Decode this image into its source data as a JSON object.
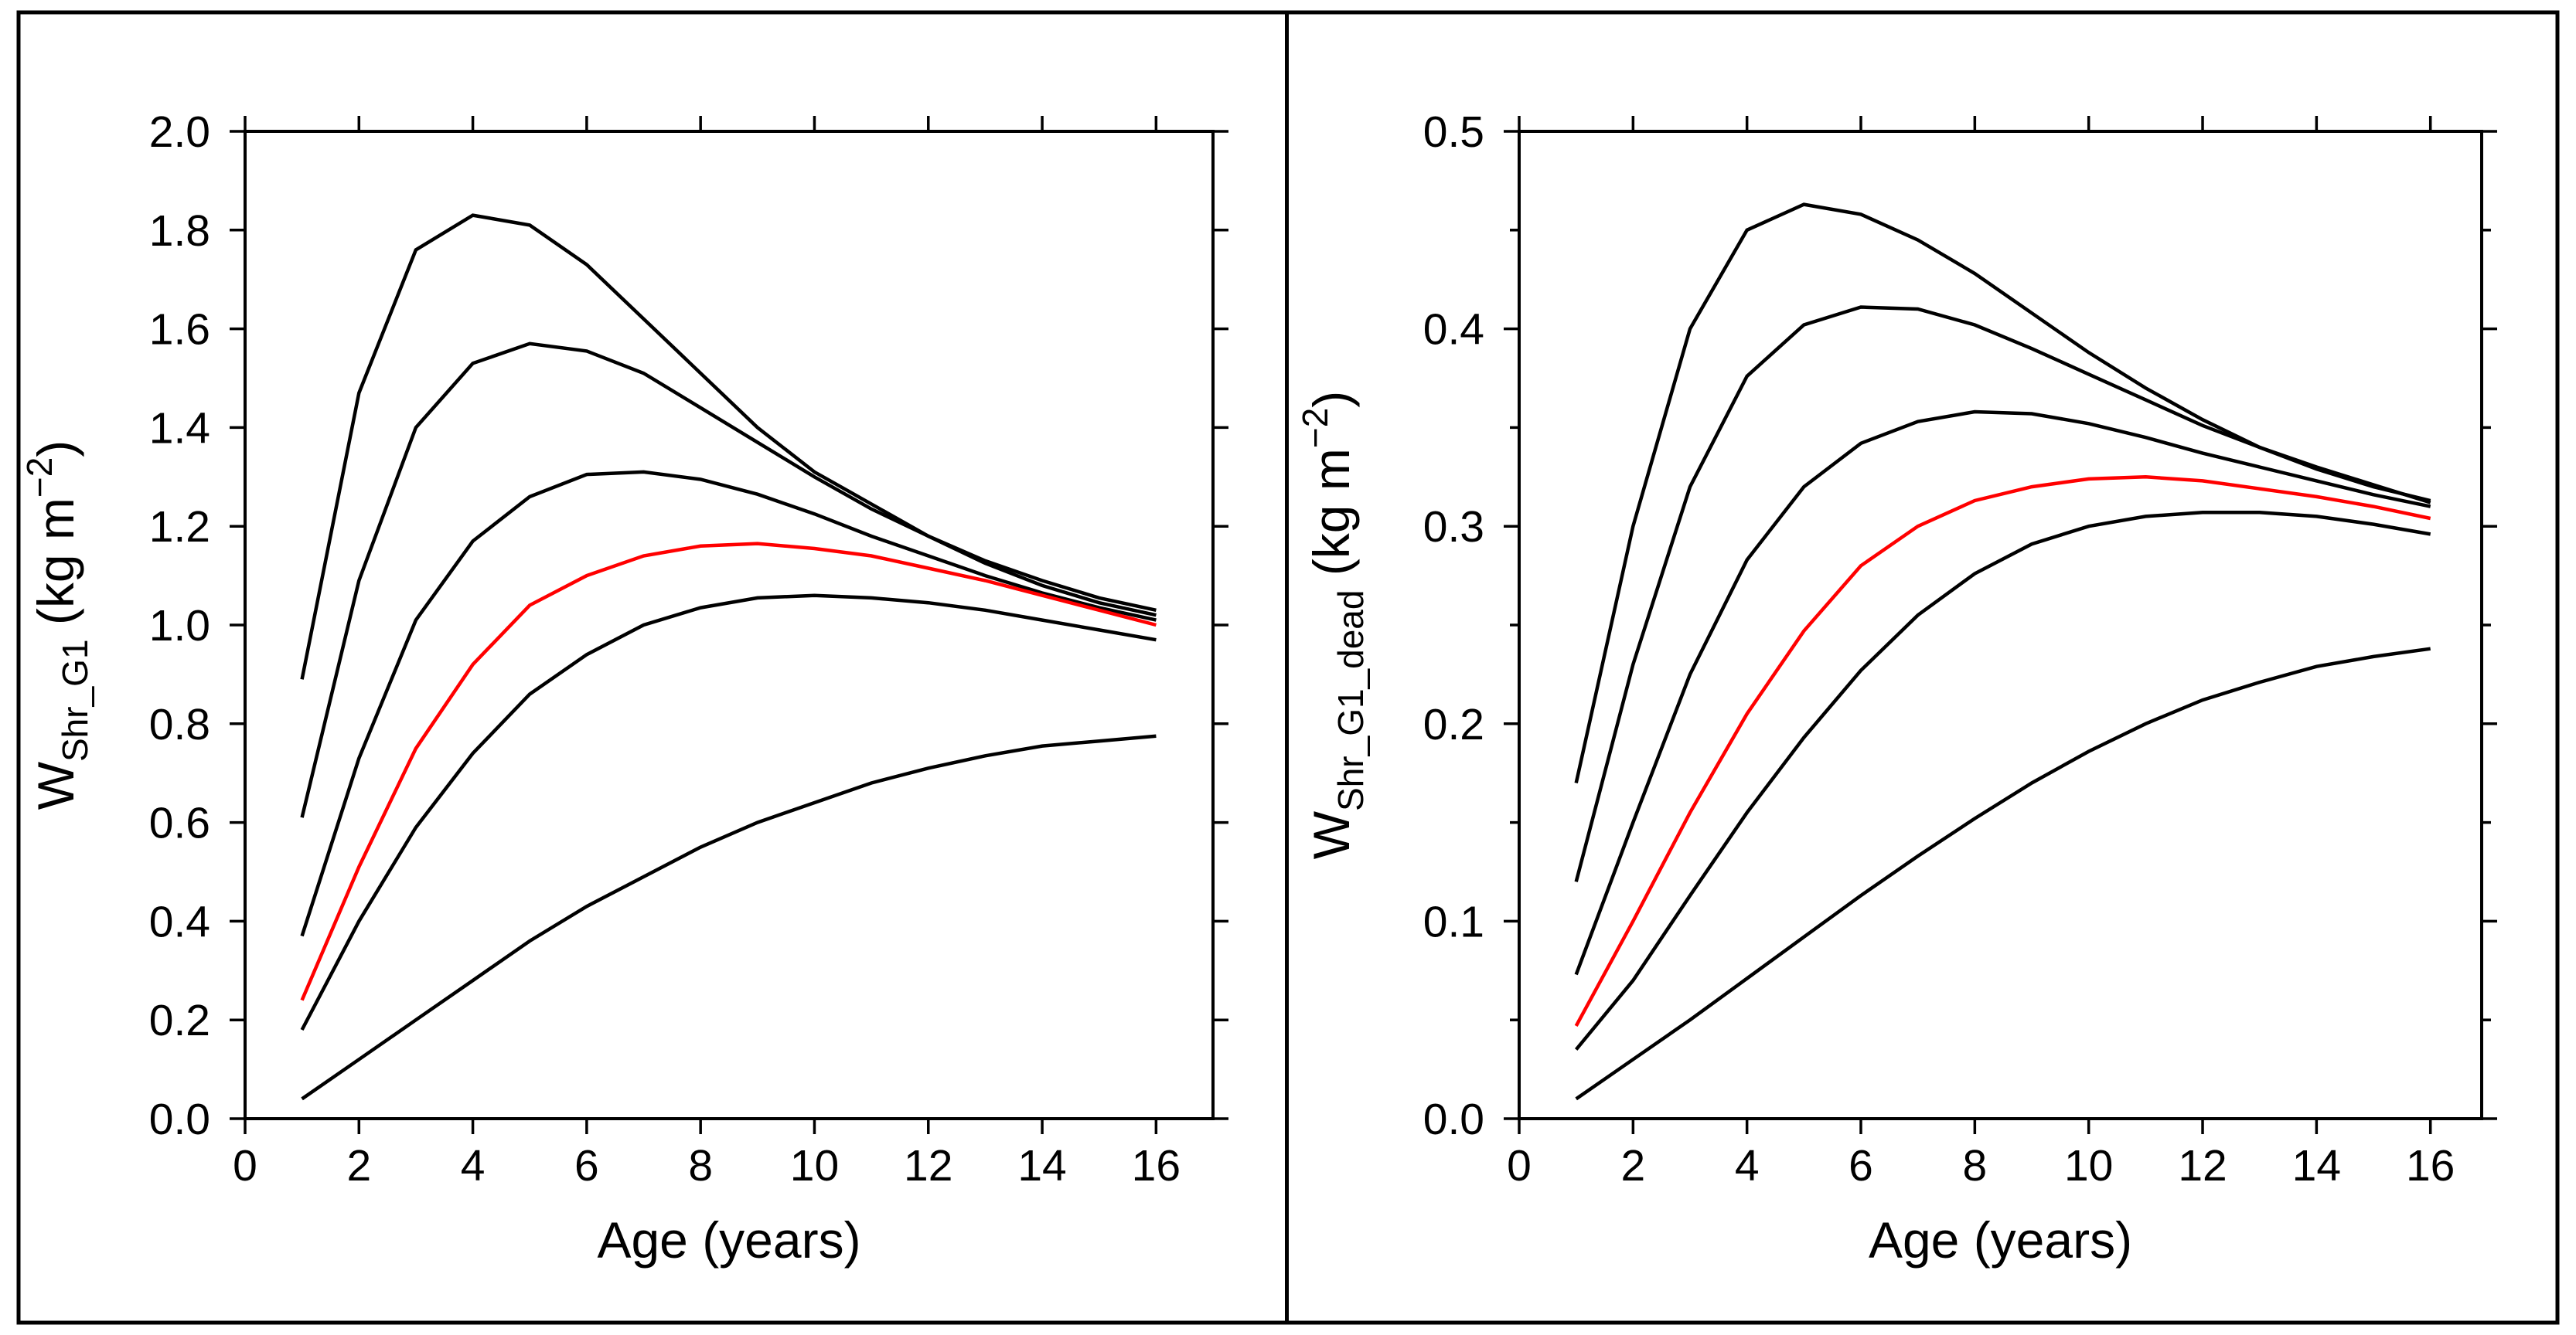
{
  "figure": {
    "background": "#ffffff",
    "border_color": "#000000",
    "default_curve_color": "#000000",
    "highlight_curve_color": "#ff0000"
  },
  "chart_data": [
    {
      "type": "line",
      "panel": "left",
      "title": "",
      "xlabel": "Age (years)",
      "ylabel": {
        "main": "W",
        "sub": "Shr_G1",
        "unit_prefix": " (kg m",
        "unit_sup": "−2",
        "unit_suffix": ")"
      },
      "xlim": [
        0,
        17.0
      ],
      "ylim": [
        0,
        2.0
      ],
      "grid": false,
      "legend": null,
      "x_ticks": [
        0,
        2,
        4,
        6,
        8,
        10,
        12,
        14,
        16
      ],
      "x_tick_labels": [
        "0",
        "2",
        "4",
        "6",
        "8",
        "10",
        "12",
        "14",
        "16"
      ],
      "y_ticks": [
        0.0,
        0.2,
        0.4,
        0.6,
        0.8,
        1.0,
        1.2,
        1.4,
        1.6,
        1.8,
        2.0
      ],
      "y_tick_labels": [
        "0.0",
        "0.2",
        "0.4",
        "0.6",
        "0.8",
        "1.0",
        "1.2",
        "1.4",
        "1.6",
        "1.8",
        "2.0"
      ],
      "y_minor_step": null,
      "x": [
        1,
        2,
        3,
        4,
        5,
        6,
        7,
        8,
        9,
        10,
        11,
        12,
        13,
        14,
        15,
        16
      ],
      "series": [
        {
          "name": "curve-1",
          "color": "#000000",
          "highlight": false,
          "values": [
            0.89,
            1.47,
            1.76,
            1.83,
            1.81,
            1.73,
            1.62,
            1.51,
            1.4,
            1.31,
            1.245,
            1.18,
            1.125,
            1.08,
            1.045,
            1.02
          ]
        },
        {
          "name": "curve-2",
          "color": "#000000",
          "highlight": false,
          "values": [
            0.61,
            1.09,
            1.4,
            1.53,
            1.57,
            1.555,
            1.51,
            1.44,
            1.37,
            1.3,
            1.235,
            1.18,
            1.13,
            1.09,
            1.055,
            1.03
          ]
        },
        {
          "name": "curve-3",
          "color": "#000000",
          "highlight": false,
          "values": [
            0.37,
            0.73,
            1.01,
            1.17,
            1.26,
            1.305,
            1.31,
            1.295,
            1.265,
            1.225,
            1.18,
            1.14,
            1.1,
            1.065,
            1.035,
            1.01
          ]
        },
        {
          "name": "curve-red",
          "color": "#ff0000",
          "highlight": true,
          "values": [
            0.24,
            0.51,
            0.75,
            0.92,
            1.04,
            1.1,
            1.14,
            1.16,
            1.165,
            1.155,
            1.14,
            1.115,
            1.09,
            1.06,
            1.03,
            1.0
          ]
        },
        {
          "name": "curve-5",
          "color": "#000000",
          "highlight": false,
          "values": [
            0.18,
            0.4,
            0.59,
            0.74,
            0.86,
            0.94,
            1.0,
            1.035,
            1.055,
            1.06,
            1.055,
            1.045,
            1.03,
            1.01,
            0.99,
            0.97
          ]
        },
        {
          "name": "curve-6",
          "color": "#000000",
          "highlight": false,
          "values": [
            0.04,
            0.12,
            0.2,
            0.28,
            0.36,
            0.43,
            0.49,
            0.55,
            0.6,
            0.64,
            0.68,
            0.71,
            0.735,
            0.755,
            0.765,
            0.775
          ]
        }
      ]
    },
    {
      "type": "line",
      "panel": "right",
      "title": "",
      "xlabel": "Age (years)",
      "ylabel": {
        "main": "W",
        "sub": "Shr_G1_dead",
        "unit_prefix": " (kg m",
        "unit_sup": "−2",
        "unit_suffix": ")"
      },
      "xlim": [
        0,
        16.9
      ],
      "ylim": [
        0,
        0.5
      ],
      "grid": false,
      "legend": null,
      "x_ticks": [
        0,
        2,
        4,
        6,
        8,
        10,
        12,
        14,
        16
      ],
      "x_tick_labels": [
        "0",
        "2",
        "4",
        "6",
        "8",
        "10",
        "12",
        "14",
        "16"
      ],
      "y_ticks": [
        0.0,
        0.1,
        0.2,
        0.3,
        0.4,
        0.5
      ],
      "y_tick_labels": [
        "0.0",
        "0.1",
        "0.2",
        "0.3",
        "0.4",
        "0.5"
      ],
      "y_minor_step": 0.05,
      "x": [
        1,
        2,
        3,
        4,
        5,
        6,
        7,
        8,
        9,
        10,
        11,
        12,
        13,
        14,
        15,
        16
      ],
      "series": [
        {
          "name": "curve-1",
          "color": "#000000",
          "highlight": false,
          "values": [
            0.17,
            0.3,
            0.4,
            0.45,
            0.463,
            0.458,
            0.445,
            0.428,
            0.408,
            0.388,
            0.37,
            0.354,
            0.34,
            0.329,
            0.32,
            0.313
          ]
        },
        {
          "name": "curve-2",
          "color": "#000000",
          "highlight": false,
          "values": [
            0.12,
            0.23,
            0.32,
            0.376,
            0.402,
            0.411,
            0.41,
            0.402,
            0.39,
            0.377,
            0.364,
            0.351,
            0.34,
            0.33,
            0.321,
            0.312
          ]
        },
        {
          "name": "curve-3",
          "color": "#000000",
          "highlight": false,
          "values": [
            0.073,
            0.15,
            0.225,
            0.283,
            0.32,
            0.342,
            0.353,
            0.358,
            0.357,
            0.352,
            0.345,
            0.337,
            0.33,
            0.323,
            0.316,
            0.31
          ]
        },
        {
          "name": "curve-red",
          "color": "#ff0000",
          "highlight": true,
          "values": [
            0.047,
            0.1,
            0.155,
            0.205,
            0.247,
            0.28,
            0.3,
            0.313,
            0.32,
            0.324,
            0.325,
            0.323,
            0.319,
            0.315,
            0.31,
            0.304
          ]
        },
        {
          "name": "curve-5",
          "color": "#000000",
          "highlight": false,
          "values": [
            0.035,
            0.07,
            0.113,
            0.155,
            0.193,
            0.227,
            0.255,
            0.276,
            0.291,
            0.3,
            0.305,
            0.307,
            0.307,
            0.305,
            0.301,
            0.296
          ]
        },
        {
          "name": "curve-6",
          "color": "#000000",
          "highlight": false,
          "values": [
            0.01,
            0.03,
            0.05,
            0.071,
            0.092,
            0.113,
            0.133,
            0.152,
            0.17,
            0.186,
            0.2,
            0.212,
            0.221,
            0.229,
            0.234,
            0.238
          ]
        }
      ]
    }
  ]
}
